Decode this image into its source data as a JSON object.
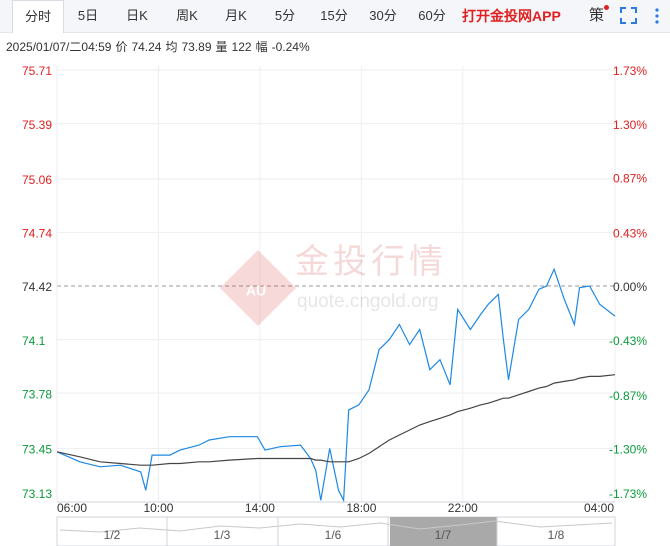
{
  "tabs": [
    "分时",
    "5日",
    "日K",
    "周K",
    "月K",
    "5分",
    "15分",
    "30分",
    "60分"
  ],
  "app_link": "打开金投网APP",
  "strategy": "策",
  "info": {
    "datetime": "2025/01/07/二04:59",
    "price_label": "价",
    "price": "74.24",
    "avg_label": "均",
    "avg": "73.89",
    "volume_label": "量",
    "volume": "122",
    "change_label": "幅",
    "change": "-0.24%"
  },
  "watermark": {
    "title": "金投行情",
    "url": "quote.cngold.org"
  },
  "navigator": {
    "dates": [
      "1/2",
      "1/3",
      "1/6",
      "1/7",
      "1/8"
    ]
  },
  "chart_data": {
    "type": "line",
    "x": [
      0,
      0.9,
      1.7,
      2.5,
      3.3,
      3.5,
      3.75,
      4.45,
      4.85,
      5.6,
      6,
      6.8,
      7.9,
      8.2,
      8.8,
      9.6,
      10,
      10.2,
      10.4,
      10.75,
      11.1,
      11.3,
      11.5,
      11.9,
      12.3,
      12.7,
      13.1,
      13.5,
      13.9,
      14.3,
      14.7,
      15.1,
      15.5,
      15.8,
      16.3,
      16.7,
      17,
      17.4,
      17.6,
      17.8,
      18.2,
      18.6,
      19,
      19.3,
      19.6,
      20,
      20.4,
      20.6,
      21,
      21.4,
      22
    ],
    "series": [
      {
        "color": "#1e88e5",
        "values": [
          73.43,
          73.37,
          73.34,
          73.35,
          73.31,
          73.2,
          73.41,
          73.41,
          73.44,
          73.47,
          73.5,
          73.52,
          73.52,
          73.44,
          73.46,
          73.47,
          73.39,
          73.32,
          73.14,
          73.45,
          73.2,
          73.14,
          73.68,
          73.71,
          73.8,
          74.04,
          74.1,
          74.19,
          74.07,
          74.16,
          73.92,
          73.98,
          73.83,
          74.28,
          74.16,
          74.25,
          74.31,
          74.37,
          74.1,
          73.86,
          74.22,
          74.28,
          74.4,
          74.42,
          74.52,
          74.34,
          74.19,
          74.41,
          74.42,
          74.31,
          74.24
        ]
      },
      {
        "color": "#444444",
        "values": [
          73.43,
          73.4,
          73.37,
          73.36,
          73.35,
          73.35,
          73.35,
          73.36,
          73.36,
          73.37,
          73.37,
          73.38,
          73.39,
          73.39,
          73.39,
          73.39,
          73.39,
          73.38,
          73.38,
          73.37,
          73.37,
          73.37,
          73.37,
          73.39,
          73.42,
          73.46,
          73.5,
          73.53,
          73.56,
          73.59,
          73.61,
          73.63,
          73.65,
          73.67,
          73.69,
          73.71,
          73.72,
          73.74,
          73.75,
          73.75,
          73.77,
          73.79,
          73.81,
          73.82,
          73.84,
          73.85,
          73.86,
          73.87,
          73.88,
          73.88,
          73.89
        ]
      }
    ],
    "xlim": [
      0,
      22
    ],
    "xticks": [
      {
        "value": 0,
        "label": "06:00"
      },
      {
        "value": 4,
        "label": "10:00"
      },
      {
        "value": 8,
        "label": "14:00"
      },
      {
        "value": 12,
        "label": "18:00"
      },
      {
        "value": 16,
        "label": "22:00"
      },
      {
        "value": 22,
        "label": "04:00"
      }
    ],
    "ylim": [
      73.13,
      75.71
    ],
    "yticks": [
      75.71,
      75.39,
      75.06,
      74.74,
      74.42,
      74.1,
      73.78,
      73.45,
      73.13
    ],
    "y2lim": [
      -1.73,
      1.73
    ],
    "y2ticks": [
      {
        "value": 1.73,
        "label": "1.73%"
      },
      {
        "value": 1.3,
        "label": "1.30%"
      },
      {
        "value": 0.87,
        "label": "0.87%"
      },
      {
        "value": 0.43,
        "label": "0.43%"
      },
      {
        "value": 0,
        "label": "0.00%"
      },
      {
        "value": -0.43,
        "label": "-0.43%"
      },
      {
        "value": -0.87,
        "label": "-0.87%"
      },
      {
        "value": -1.3,
        "label": "-1.30%"
      },
      {
        "value": -1.73,
        "label": "-1.73%"
      }
    ],
    "baseline": 74.42,
    "grid": true
  }
}
